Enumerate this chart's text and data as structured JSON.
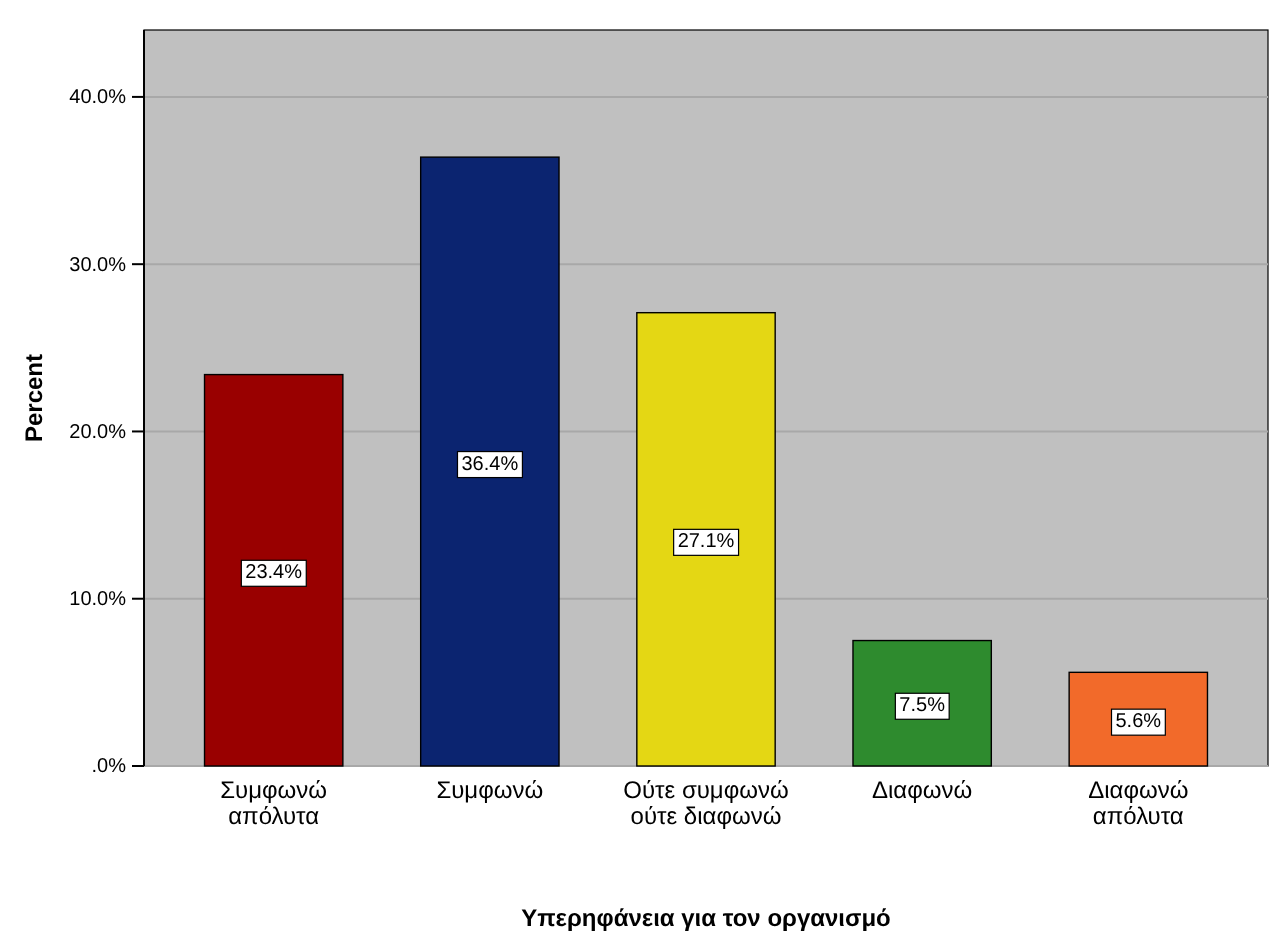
{
  "chart_data": {
    "type": "bar",
    "xlabel": "Υπερηφάνεια για τον οργανισμό",
    "ylabel": "Percent",
    "categories": [
      "Συμφωνώ απόλυτα",
      "Συμφωνώ",
      "Ούτε συμφωνώ ούτε διαφωνώ",
      "Διαφωνώ",
      "Διαφωνώ απόλυτα"
    ],
    "values": [
      23.4,
      36.4,
      27.1,
      7.5,
      5.6
    ],
    "colors": [
      "#990000",
      "#0b2470",
      "#e4d714",
      "#2e8b2e",
      "#f26a2a"
    ],
    "value_labels": [
      "23.4%",
      "36.4%",
      "27.1%",
      "7.5%",
      "5.6%"
    ],
    "ylim": [
      0,
      44
    ],
    "yticks": [
      {
        "value": 0,
        "label": ".0%"
      },
      {
        "value": 10,
        "label": "10.0%"
      },
      {
        "value": 20,
        "label": "20.0%"
      },
      {
        "value": 30,
        "label": "30.0%"
      },
      {
        "value": 40,
        "label": "40.0%"
      }
    ],
    "grid": "y"
  }
}
